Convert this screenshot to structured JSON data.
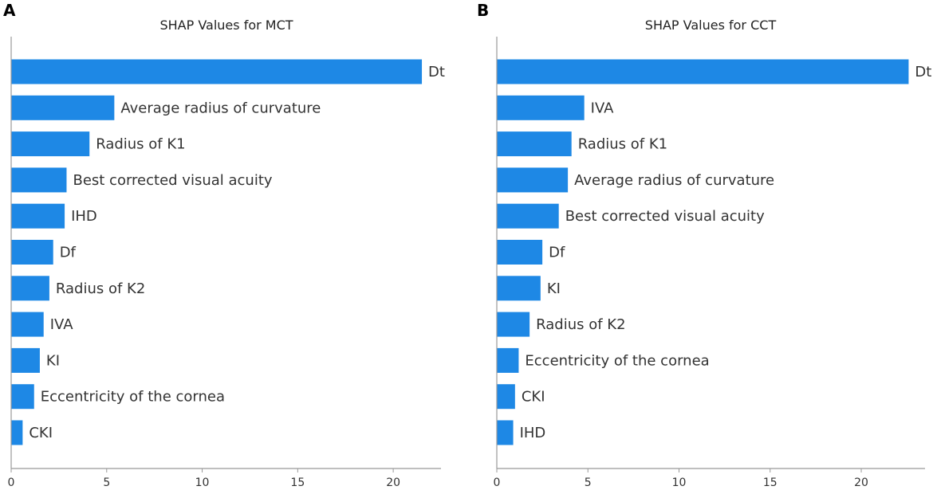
{
  "chart_data": [
    {
      "type": "bar",
      "orientation": "horizontal",
      "panel_letter": "A",
      "title": "SHAP Values for MCT",
      "xlim": [
        0,
        22.5
      ],
      "xticks": [
        0,
        5,
        10,
        15,
        20
      ],
      "bar_color": "#1e88e5",
      "categories": [
        "Dt",
        "Average radius of curvature",
        "Radius of K1",
        "Best corrected visual acuity",
        "IHD",
        "Df",
        "Radius of K2",
        "IVA",
        "KI",
        "Eccentricity of the cornea",
        "CKI"
      ],
      "values": [
        21.5,
        5.4,
        4.1,
        2.9,
        2.8,
        2.2,
        2.0,
        1.7,
        1.5,
        1.2,
        0.6
      ]
    },
    {
      "type": "bar",
      "orientation": "horizontal",
      "panel_letter": "B",
      "title": "SHAP Values for CCT",
      "xlim": [
        0,
        23.5
      ],
      "xticks": [
        0,
        5,
        10,
        15,
        20
      ],
      "bar_color": "#1e88e5",
      "categories": [
        "Dt",
        "IVA",
        "Radius of K1",
        "Average radius of curvature",
        "Best corrected visual acuity",
        "Df",
        "KI",
        "Radius of K2",
        "Eccentricity of the cornea",
        "CKI",
        "IHD"
      ],
      "values": [
        22.6,
        4.8,
        4.1,
        3.9,
        3.4,
        2.5,
        2.4,
        1.8,
        1.2,
        1.0,
        0.9
      ]
    }
  ]
}
